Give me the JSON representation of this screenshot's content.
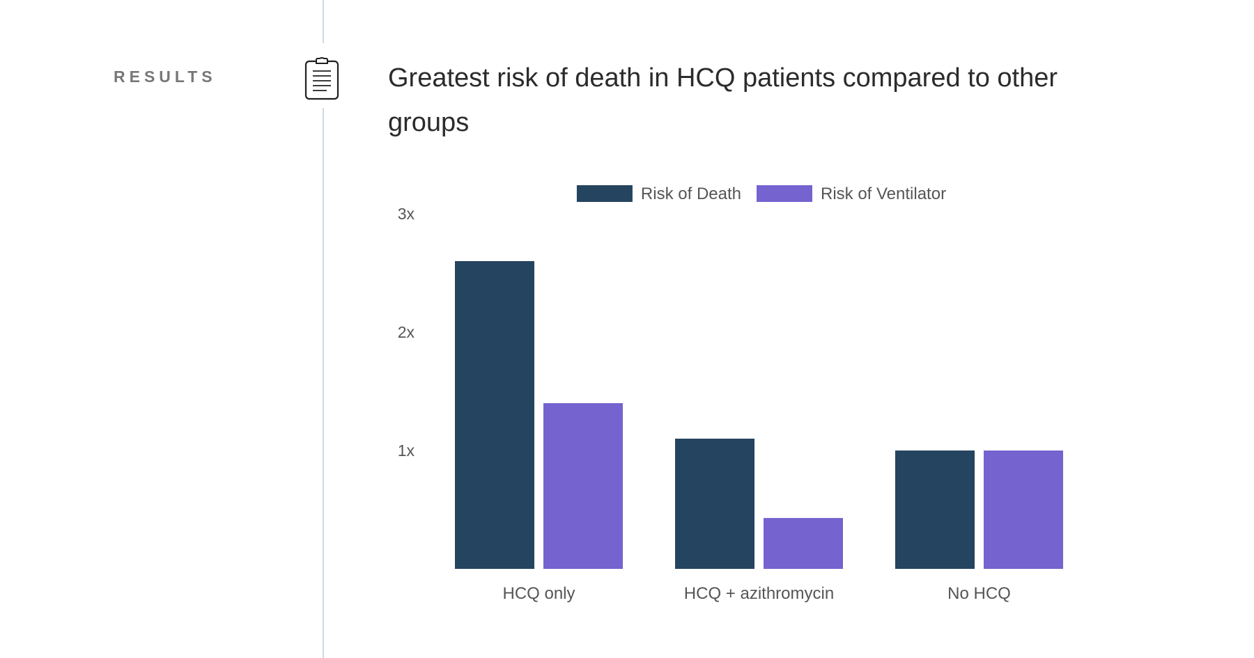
{
  "section": {
    "label": "RESULTS",
    "icon": "clipboard-icon"
  },
  "headline": "Greatest risk of death in HCQ patients compared to other groups",
  "colors": {
    "death": "#25445f",
    "ventilator": "#7563cf",
    "timeline": "#cfd9e4"
  },
  "chart_data": {
    "type": "bar",
    "title": "",
    "xlabel": "",
    "ylabel": "",
    "ylim": [
      0,
      3
    ],
    "yticks": [
      {
        "value": 1,
        "label": "1x"
      },
      {
        "value": 2,
        "label": "2x"
      },
      {
        "value": 3,
        "label": "3x"
      }
    ],
    "categories": [
      "HCQ only",
      "HCQ + azithromycin",
      "No HCQ"
    ],
    "series": [
      {
        "name": "Risk of Death",
        "color": "#25445f",
        "values": [
          2.6,
          1.1,
          1.0
        ]
      },
      {
        "name": "Risk of Ventilator",
        "color": "#7563cf",
        "values": [
          1.4,
          0.43,
          1.0
        ]
      }
    ],
    "legend_position": "top-center",
    "grid": false
  }
}
